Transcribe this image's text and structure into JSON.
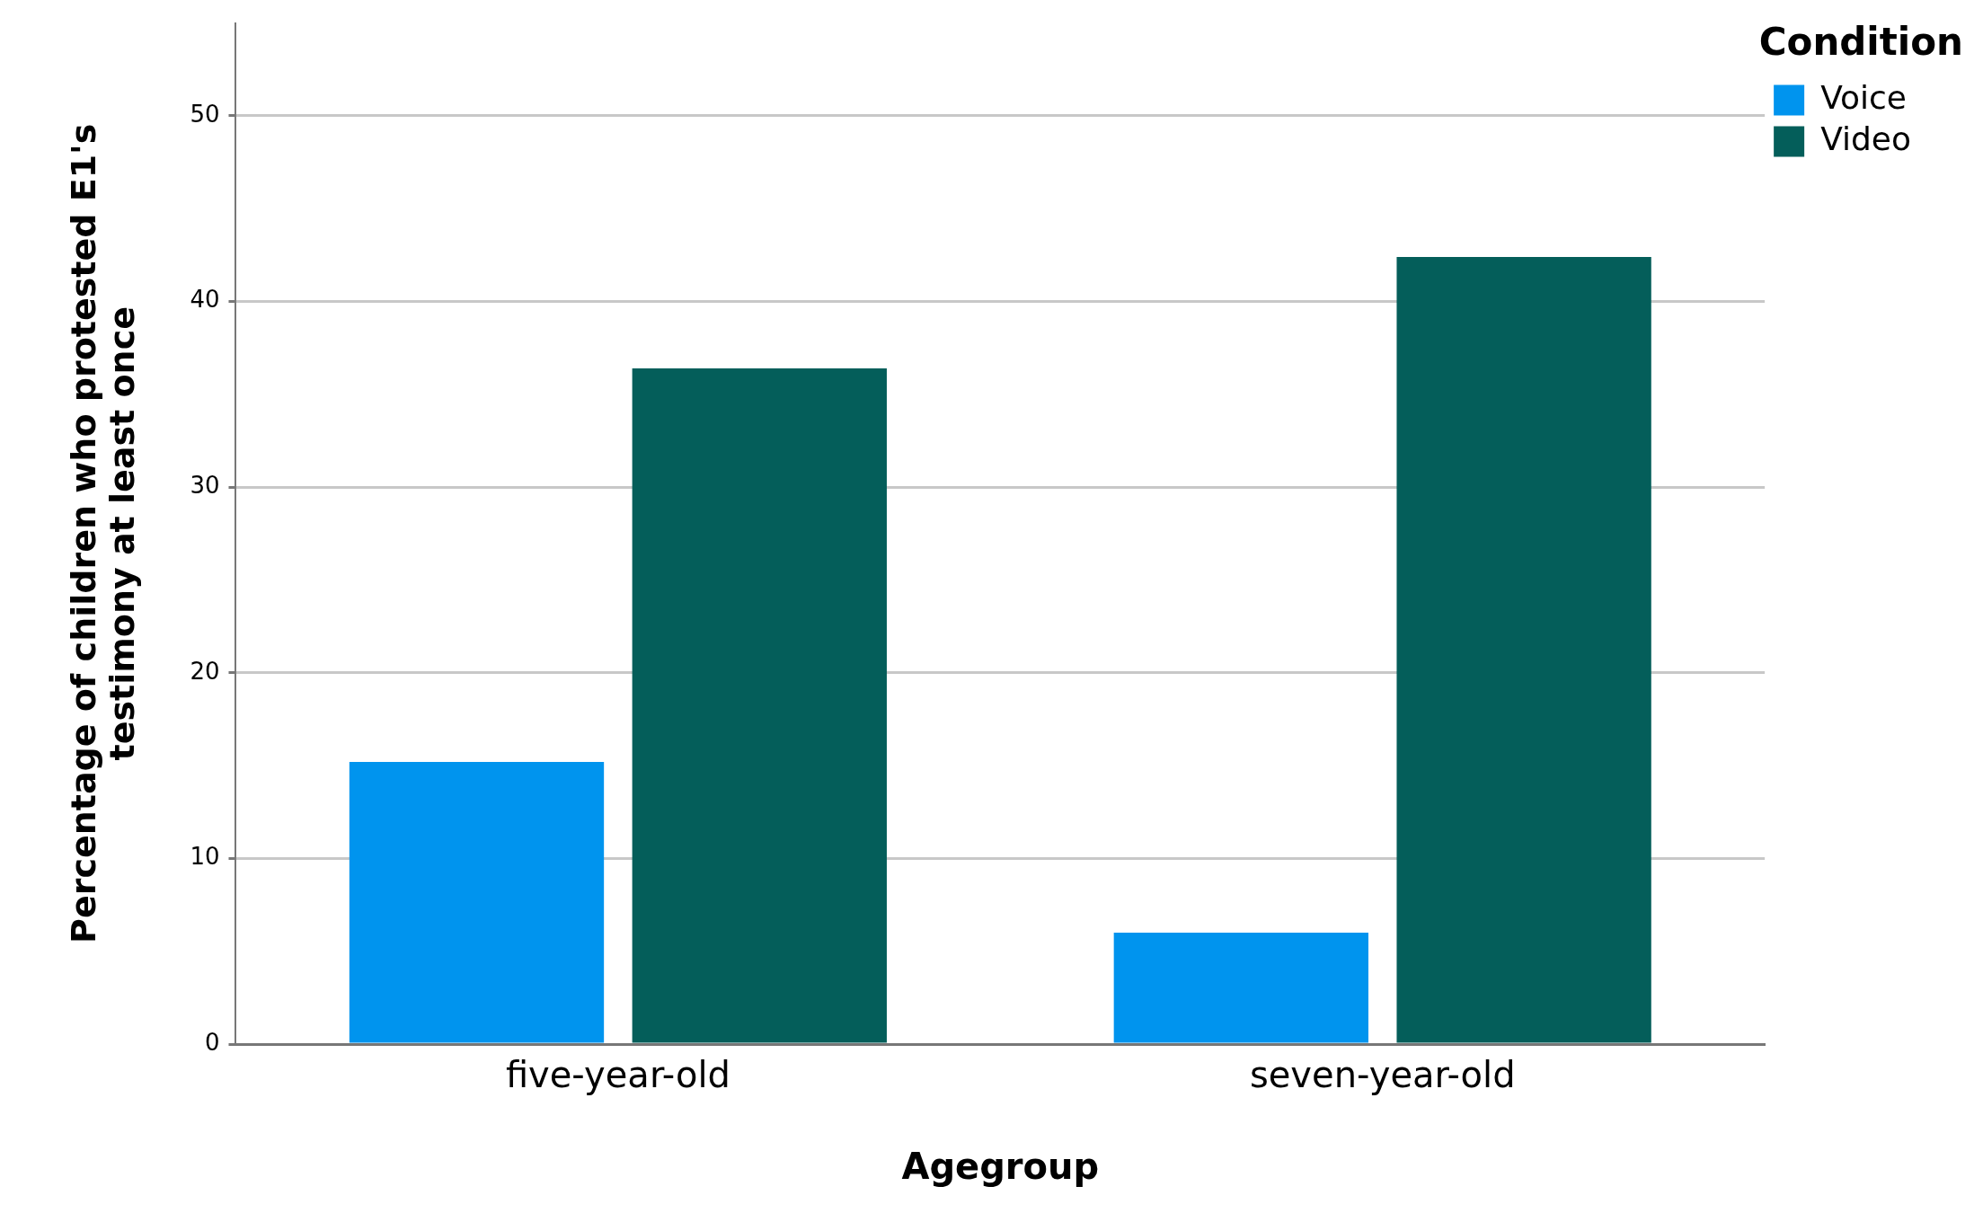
{
  "chart_data": {
    "type": "bar",
    "xlabel": "Agegroup",
    "ylabel": "Percentage of children who protested E1's\ntestimony at least once",
    "legend_title": "Condition",
    "categories": [
      "five-year-old",
      "seven-year-old"
    ],
    "series": [
      {
        "name": "Voice",
        "color": "#0094ee",
        "values": [
          15.2,
          6.0
        ]
      },
      {
        "name": "Video",
        "color": "#045e5a",
        "values": [
          36.4,
          42.4
        ]
      }
    ],
    "ylim": [
      0,
      55
    ],
    "yticks": [
      0,
      10,
      20,
      30,
      40,
      50
    ],
    "grid": "y",
    "legend": "top right"
  }
}
